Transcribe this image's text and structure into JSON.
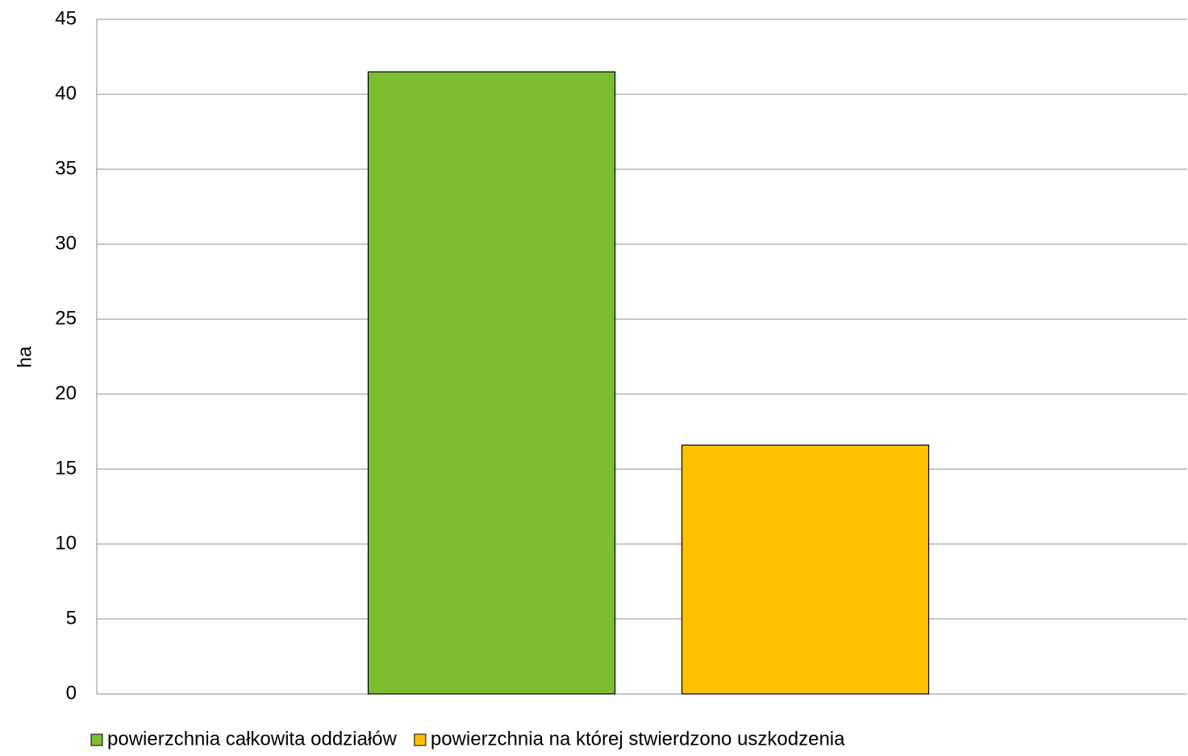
{
  "chart_data": {
    "type": "bar",
    "y_label": "ha",
    "categories": [
      null
    ],
    "series": [
      {
        "name": "powierzchnia całkowita oddziałów",
        "color": "#7cbd32",
        "values": [
          41.5
        ]
      },
      {
        "name": "powierzchnia na której stwierdzono uszkodzenia",
        "color": "#ffc000",
        "values": [
          16.6
        ]
      }
    ],
    "ylim": [
      0,
      45
    ],
    "yticks": [
      0,
      5,
      10,
      15,
      20,
      25,
      30,
      35,
      40,
      45
    ],
    "grid": true,
    "legend": "bottom"
  }
}
